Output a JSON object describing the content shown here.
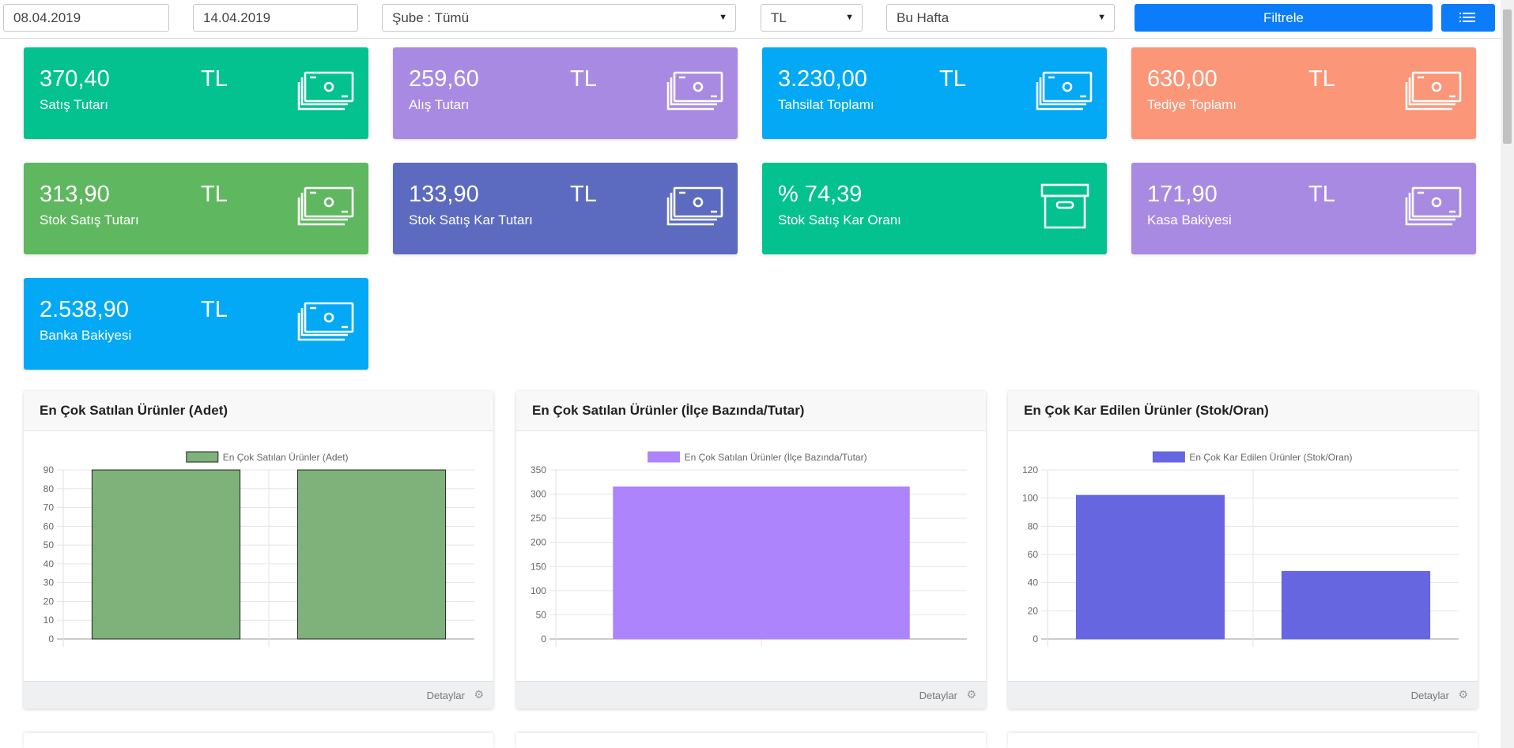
{
  "filters": {
    "start_date": "08.04.2019",
    "end_date": "14.04.2019",
    "branch": "Şube : Tümü",
    "currency": "TL",
    "period": "Bu Hafta",
    "filter_button": "Filtrele",
    "list_icon": "list-icon"
  },
  "tiles": [
    {
      "value": "370,40",
      "currency": "TL",
      "label": "Satış Tutarı",
      "color": "#03c28f",
      "icon": "money-icon"
    },
    {
      "value": "259,60",
      "currency": "TL",
      "label": "Alış Tutarı",
      "color": "#a98ae3",
      "icon": "money-icon"
    },
    {
      "value": "3.230,00",
      "currency": "TL",
      "label": "Tahsilat Toplamı",
      "color": "#03a9f4",
      "icon": "money-icon"
    },
    {
      "value": "630,00",
      "currency": "TL",
      "label": "Tediye Toplamı",
      "color": "#fb9678",
      "icon": "money-icon"
    },
    {
      "value": "313,90",
      "currency": "TL",
      "label": "Stok Satış Tutarı",
      "color": "#5fb85f",
      "icon": "money-icon"
    },
    {
      "value": "133,90",
      "currency": "TL",
      "label": "Stok Satış Kar Tutarı",
      "color": "#5c6bc0",
      "icon": "money-icon"
    },
    {
      "value": "% 74,39",
      "currency": "",
      "label": "Stok Satış Kar Oranı",
      "color": "#03c28f",
      "icon": "archive-box-icon"
    },
    {
      "value": "171,90",
      "currency": "TL",
      "label": "Kasa Bakiyesi",
      "color": "#a98ae3",
      "icon": "money-icon"
    },
    {
      "value": "2.538,90",
      "currency": "TL",
      "label": "Banka Bakiyesi",
      "color": "#03a9f4",
      "icon": "money-icon"
    }
  ],
  "cards": [
    {
      "title": "En Çok Satılan Ürünler (Adet)",
      "footer": "Detaylar"
    },
    {
      "title": "En Çok Satılan Ürünler (İlçe Bazında/Tutar)",
      "footer": "Detaylar"
    },
    {
      "title": "En Çok Kar Edilen Ürünler (Stok/Oran)",
      "footer": "Detaylar"
    }
  ],
  "chart_data": [
    {
      "type": "bar",
      "categories": [
        "",
        ""
      ],
      "series": [
        {
          "name": "En Çok Satılan Ürünler (Adet)",
          "values": [
            90,
            90
          ]
        }
      ],
      "ylim": [
        0,
        90
      ],
      "yticks": [
        0,
        10,
        20,
        30,
        40,
        50,
        60,
        70,
        80,
        90
      ],
      "grid": true,
      "legend": "top",
      "color": "#7eb27a",
      "border": "#222222"
    },
    {
      "type": "bar",
      "categories": [
        ""
      ],
      "series": [
        {
          "name": "En Çok Satılan Ürünler (İlçe Bazında/Tutar)",
          "values": [
            315
          ]
        }
      ],
      "ylim": [
        0,
        350
      ],
      "yticks": [
        0,
        50,
        100,
        150,
        200,
        250,
        300,
        350
      ],
      "grid": true,
      "legend": "top",
      "color": "#ad84fb",
      "border": "#ad84fb"
    },
    {
      "type": "bar",
      "categories": [
        "",
        ""
      ],
      "series": [
        {
          "name": "En Çok Kar Edilen Ürünler (Stok/Oran)",
          "values": [
            102,
            48
          ]
        }
      ],
      "ylim": [
        0,
        120
      ],
      "yticks": [
        0,
        20,
        40,
        60,
        80,
        100,
        120
      ],
      "grid": true,
      "legend": "top",
      "color": "#6766e1",
      "border": "#6766e1"
    }
  ]
}
